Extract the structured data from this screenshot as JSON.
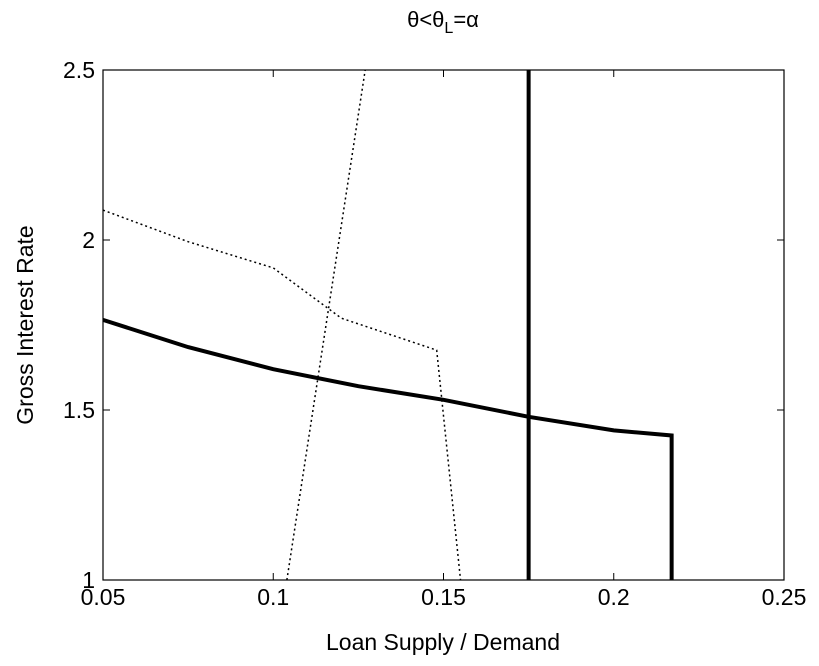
{
  "chart_data": {
    "type": "line",
    "title": [
      "θ<θ",
      "L",
      "=α"
    ],
    "x_label": "Loan Supply / Demand",
    "y_label": "Gross Interest Rate",
    "xlim": [
      0.05,
      0.25
    ],
    "xticks": [
      0.05,
      0.1,
      0.15,
      0.2,
      0.25
    ],
    "ylim": [
      1,
      2.5
    ],
    "yticks": [
      1,
      1.5,
      2,
      2.5
    ],
    "grid": false,
    "series": [
      {
        "color": "#000000",
        "style": "solid",
        "width": 4,
        "x": [
          0.05,
          0.075,
          0.1,
          0.125,
          0.15,
          0.175,
          0.2,
          0.217,
          0.217
        ],
        "values": [
          1.765,
          1.685,
          1.62,
          1.57,
          1.53,
          1.48,
          1.44,
          1.425,
          1
        ]
      },
      {
        "color": "#000000",
        "style": "solid",
        "width": 4,
        "x": [
          0.175,
          0.175
        ],
        "values": [
          1,
          2.5
        ]
      },
      {
        "color": "#000000",
        "style": "dotted",
        "width": 1.5,
        "x": [
          0.05,
          0.075,
          0.1,
          0.12,
          0.148,
          0.155
        ],
        "values": [
          2.088,
          1.995,
          1.918,
          1.77,
          1.676,
          1
        ]
      },
      {
        "color": "#000000",
        "style": "dotted",
        "width": 1.5,
        "x": [
          0.104,
          0.127
        ],
        "values": [
          1,
          2.5
        ]
      }
    ]
  }
}
